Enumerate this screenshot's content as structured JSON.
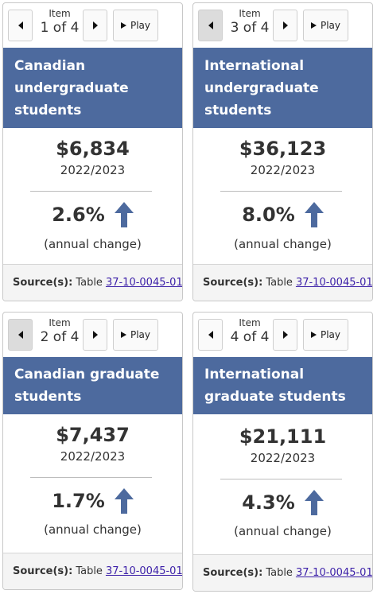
{
  "controls": {
    "item_label": "Item",
    "play_label": "Play"
  },
  "source_label": "Source(s):",
  "source_prefix": "Table",
  "change_caption": "(annual change)",
  "accent_color": "#4d6a9e",
  "cards": [
    {
      "item_value": "1 of 4",
      "title": "Canadian undergraduate students",
      "amount": "$6,834",
      "year": "2022/2023",
      "change": "2.6%",
      "table_id": "37-10-0045-01",
      "prev_disabled": false
    },
    {
      "item_value": "3 of 4",
      "title": "International undergraduate students",
      "amount": "$36,123",
      "year": "2022/2023",
      "change": "8.0%",
      "table_id": "37-10-0045-01",
      "prev_disabled": true
    },
    {
      "item_value": "2 of 4",
      "title": "Canadian graduate students",
      "amount": "$7,437",
      "year": "2022/2023",
      "change": "1.7%",
      "table_id": "37-10-0045-01",
      "prev_disabled": true
    },
    {
      "item_value": "4 of 4",
      "title": "International graduate students",
      "amount": "$21,111",
      "year": "2022/2023",
      "change": "4.3%",
      "table_id": "37-10-0045-01",
      "prev_disabled": false
    }
  ]
}
